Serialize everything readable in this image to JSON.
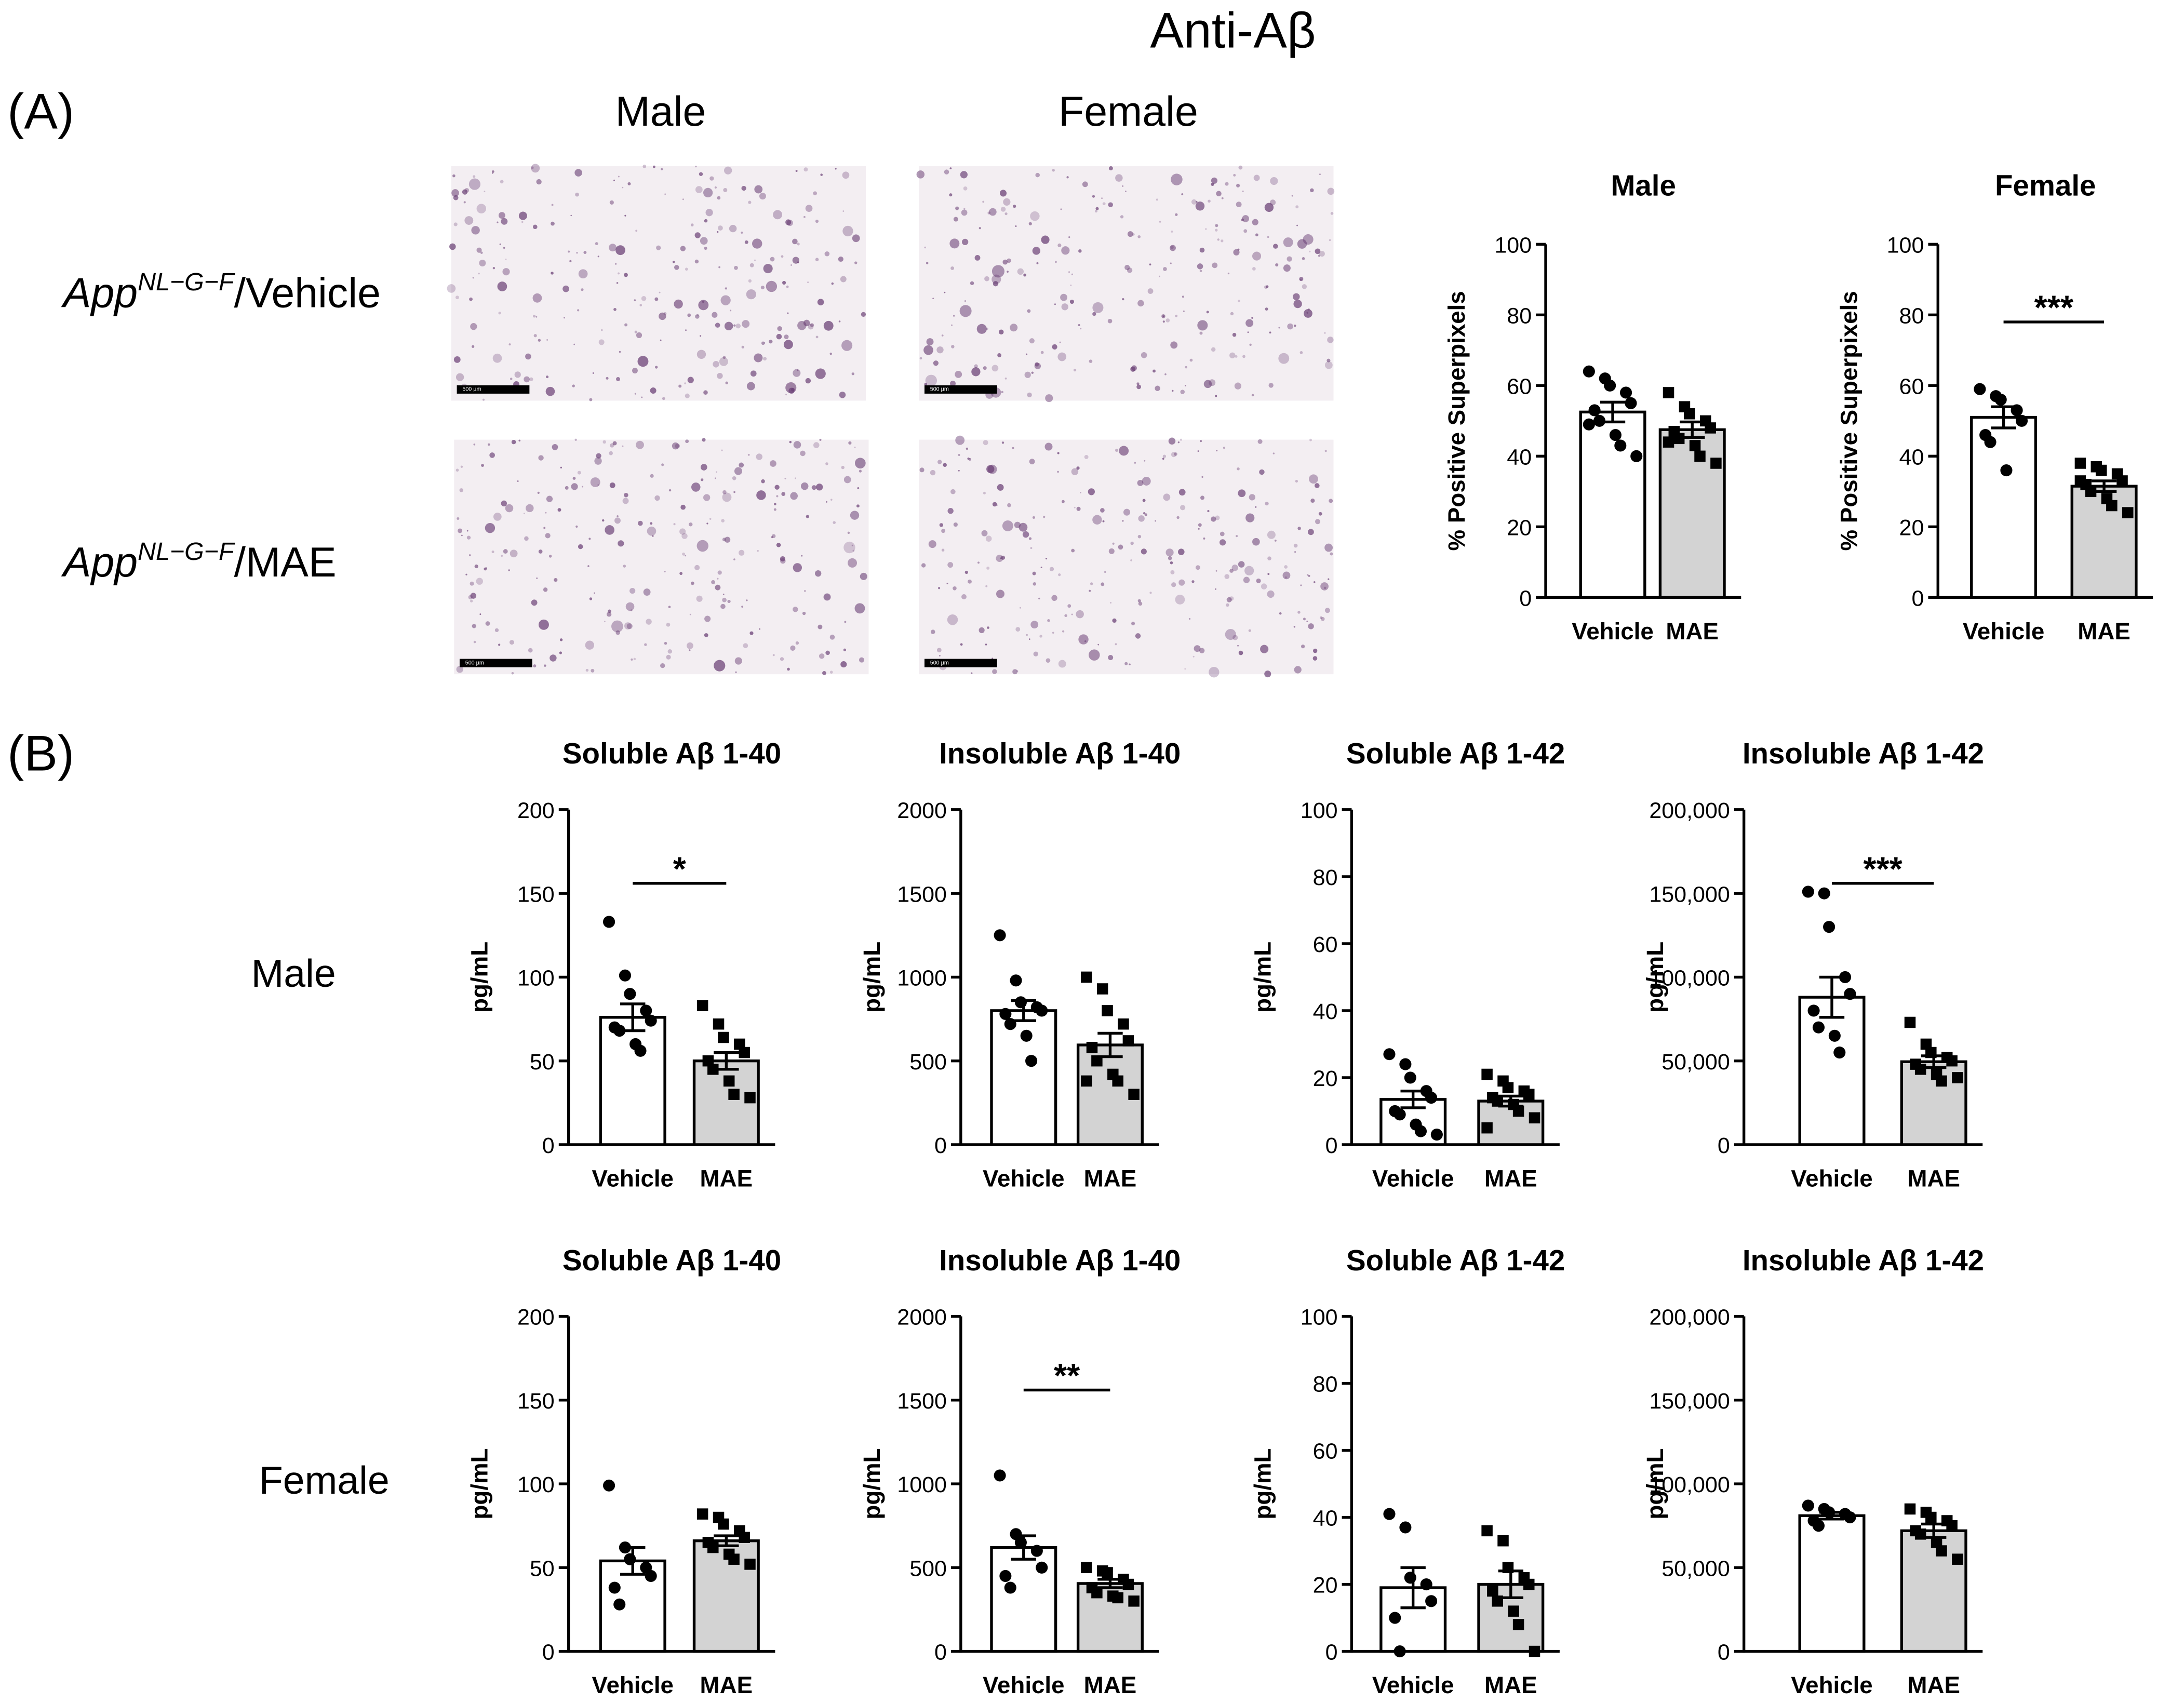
{
  "figure": {
    "title": "Anti-Aβ",
    "panel_a": "(A)",
    "panel_b": "(B)",
    "column_labels": [
      "Male",
      "Female"
    ],
    "row_labels": [
      {
        "italic": "App",
        "superscript": "NL−G−F",
        "rest": "/Vehicle"
      },
      {
        "italic": "App",
        "superscript": "NL−G−F",
        "rest": "/MAE"
      }
    ],
    "scale_bar": "500 µm",
    "b_row_labels": [
      "Male",
      "Female"
    ]
  },
  "chart_data": [
    {
      "type": "bar",
      "title": "Male",
      "ylabel": "% Positive Superpixels",
      "categories": [
        "Vehicle",
        "MAE"
      ],
      "colors": [
        "#ffffff",
        "#d3d3d3"
      ],
      "markers": [
        "circle",
        "square"
      ],
      "values": [
        52.5,
        47.5
      ],
      "errors": [
        2.8,
        2.2
      ],
      "points": [
        [
          64,
          62,
          60,
          58,
          55,
          53,
          50,
          46,
          43,
          40,
          49
        ],
        [
          58,
          54,
          52,
          50,
          48,
          47,
          45,
          43,
          40,
          38,
          44
        ]
      ],
      "ylim": [
        0,
        100
      ],
      "yticks": [
        0,
        20,
        40,
        60,
        80,
        100
      ]
    },
    {
      "type": "bar",
      "title": "Female",
      "ylabel": "% Positive Superpixels",
      "categories": [
        "Vehicle",
        "MAE"
      ],
      "colors": [
        "#ffffff",
        "#d3d3d3"
      ],
      "markers": [
        "circle",
        "square"
      ],
      "values": [
        51,
        31.5
      ],
      "errors": [
        3,
        1.5
      ],
      "points": [
        [
          59,
          57,
          56,
          53,
          50,
          46,
          44,
          36
        ],
        [
          38,
          37,
          36,
          35,
          33,
          32,
          30,
          28,
          26,
          24,
          33
        ]
      ],
      "ylim": [
        0,
        100
      ],
      "yticks": [
        0,
        20,
        40,
        60,
        80,
        100
      ],
      "annotation": "***"
    },
    {
      "type": "bar",
      "title": "Soluble Aβ 1-40",
      "ylabel": "pg/mL",
      "categories": [
        "Vehicle",
        "MAE"
      ],
      "colors": [
        "#ffffff",
        "#d3d3d3"
      ],
      "markers": [
        "circle",
        "square"
      ],
      "values": [
        76,
        50
      ],
      "errors": [
        8,
        5
      ],
      "points": [
        [
          133,
          101,
          90,
          80,
          74,
          70,
          68,
          60,
          56
        ],
        [
          83,
          72,
          64,
          60,
          55,
          50,
          45,
          38,
          30,
          28
        ]
      ],
      "ylim": [
        0,
        200
      ],
      "yticks": [
        0,
        50,
        100,
        150,
        200
      ],
      "annotation": "*"
    },
    {
      "type": "bar",
      "title": "Insoluble Aβ 1-40",
      "ylabel": "pg/mL",
      "categories": [
        "Vehicle",
        "MAE"
      ],
      "colors": [
        "#ffffff",
        "#d3d3d3"
      ],
      "markers": [
        "circle",
        "square"
      ],
      "values": [
        800,
        595
      ],
      "errors": [
        60,
        70
      ],
      "points": [
        [
          1250,
          980,
          850,
          820,
          800,
          780,
          720,
          650,
          500
        ],
        [
          1000,
          930,
          800,
          720,
          620,
          580,
          500,
          420,
          380,
          300,
          380
        ]
      ],
      "ylim": [
        0,
        2000
      ],
      "yticks": [
        0,
        500,
        1000,
        1500,
        2000
      ]
    },
    {
      "type": "bar",
      "title": "Soluble Aβ 1-42",
      "ylabel": "pg/mL",
      "categories": [
        "Vehicle",
        "MAE"
      ],
      "colors": [
        "#ffffff",
        "#d3d3d3"
      ],
      "markers": [
        "circle",
        "square"
      ],
      "values": [
        13.5,
        13
      ],
      "errors": [
        2.5,
        1.5
      ],
      "points": [
        [
          27,
          24,
          20,
          16,
          14,
          10,
          9,
          6,
          4,
          3
        ],
        [
          21,
          19,
          17,
          16,
          15,
          14,
          13,
          12,
          10,
          8,
          5
        ]
      ],
      "ylim": [
        0,
        100
      ],
      "yticks": [
        0,
        20,
        40,
        60,
        80,
        100
      ]
    },
    {
      "type": "bar",
      "title": "Insoluble Aβ 1-42",
      "ylabel": "pg/mL",
      "categories": [
        "Vehicle",
        "MAE"
      ],
      "colors": [
        "#ffffff",
        "#d3d3d3"
      ],
      "markers": [
        "circle",
        "square"
      ],
      "values": [
        88000,
        49500
      ],
      "errors": [
        12000,
        3500
      ],
      "points": [
        [
          151000,
          150000,
          130000,
          100000,
          90000,
          80000,
          70000,
          65000,
          55000
        ],
        [
          73000,
          60000,
          55000,
          52000,
          50000,
          48000,
          45000,
          42000,
          38000,
          40000
        ]
      ],
      "ylim": [
        0,
        200000
      ],
      "yticks": [
        0,
        {
          "value": 50000,
          "label": "50,000"
        },
        {
          "value": 100000,
          "label": "100,000"
        },
        {
          "value": 150000,
          "label": "150,000"
        },
        {
          "value": 200000,
          "label": "200,000"
        }
      ],
      "annotation": "***"
    },
    {
      "type": "bar",
      "title": "Soluble Aβ 1-40",
      "ylabel": "pg/mL",
      "categories": [
        "Vehicle",
        "MAE"
      ],
      "colors": [
        "#ffffff",
        "#d3d3d3"
      ],
      "markers": [
        "circle",
        "square"
      ],
      "values": [
        54,
        66
      ],
      "errors": [
        8,
        3
      ],
      "points": [
        [
          99,
          62,
          55,
          50,
          45,
          38,
          28
        ],
        [
          82,
          80,
          76,
          72,
          68,
          65,
          62,
          58,
          55,
          52
        ]
      ],
      "ylim": [
        0,
        200
      ],
      "yticks": [
        0,
        50,
        100,
        150,
        200
      ]
    },
    {
      "type": "bar",
      "title": "Insoluble Aβ 1-40",
      "ylabel": "pg/mL",
      "categories": [
        "Vehicle",
        "MAE"
      ],
      "colors": [
        "#ffffff",
        "#d3d3d3"
      ],
      "markers": [
        "circle",
        "square"
      ],
      "values": [
        620,
        405
      ],
      "errors": [
        70,
        25
      ],
      "points": [
        [
          1050,
          700,
          650,
          600,
          500,
          450,
          380
        ],
        [
          500,
          480,
          470,
          430,
          400,
          380,
          350,
          330,
          320,
          300
        ]
      ],
      "ylim": [
        0,
        2000
      ],
      "yticks": [
        0,
        500,
        1000,
        1500,
        2000
      ],
      "annotation": "**"
    },
    {
      "type": "bar",
      "title": "Soluble Aβ 1-42",
      "ylabel": "pg/mL",
      "categories": [
        "Vehicle",
        "MAE"
      ],
      "colors": [
        "#ffffff",
        "#d3d3d3"
      ],
      "markers": [
        "circle",
        "square"
      ],
      "values": [
        19,
        20
      ],
      "errors": [
        6,
        4
      ],
      "points": [
        [
          41,
          37,
          22,
          20,
          15,
          10,
          0
        ],
        [
          36,
          33,
          25,
          22,
          20,
          18,
          15,
          12,
          8,
          0
        ]
      ],
      "ylim": [
        0,
        100
      ],
      "yticks": [
        0,
        20,
        40,
        60,
        80,
        100
      ]
    },
    {
      "type": "bar",
      "title": "Insoluble Aβ 1-42",
      "ylabel": "pg/mL",
      "categories": [
        "Vehicle",
        "MAE"
      ],
      "colors": [
        "#ffffff",
        "#d3d3d3"
      ],
      "markers": [
        "circle",
        "square"
      ],
      "values": [
        81000,
        72000
      ],
      "errors": [
        2000,
        4000
      ],
      "points": [
        [
          87000,
          85000,
          83000,
          82000,
          80000,
          78000,
          75000
        ],
        [
          85000,
          83000,
          80000,
          78000,
          75000,
          72000,
          70000,
          65000,
          60000,
          55000
        ]
      ],
      "ylim": [
        0,
        200000
      ],
      "yticks": [
        0,
        {
          "value": 50000,
          "label": "50,000"
        },
        {
          "value": 100000,
          "label": "100,000"
        },
        {
          "value": 150000,
          "label": "150,000"
        },
        {
          "value": 200000,
          "label": "200,000"
        }
      ]
    }
  ]
}
